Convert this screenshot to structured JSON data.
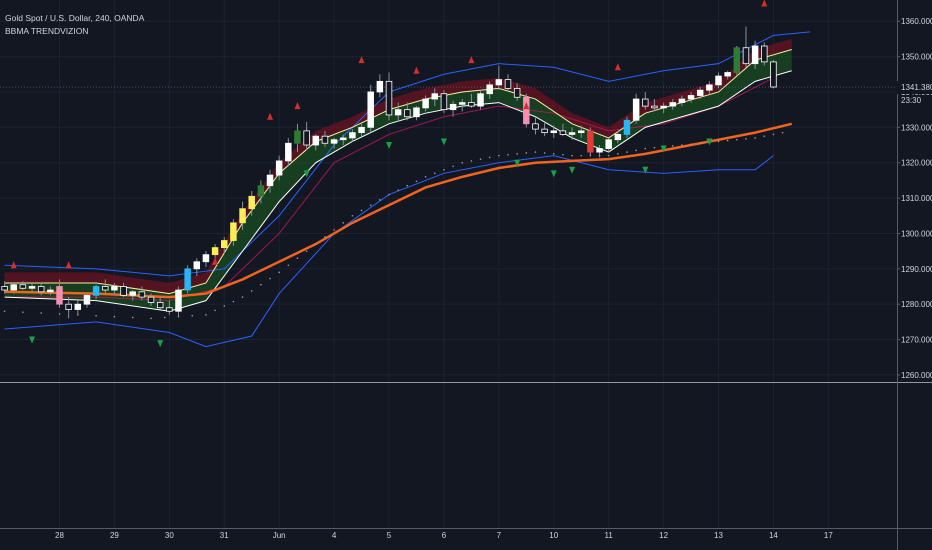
{
  "header": {
    "symbol_title": "Gold Spot / U.S. Dollar, 240, OANDA",
    "indicator_name": "BBMA TRENDVIZION"
  },
  "price_axis": {
    "current_price": "1341.380",
    "countdown": "23:30"
  },
  "colors": {
    "background": "#131722",
    "grid": "#1e2230",
    "axis_text": "#d1d4dc",
    "bb_band": "#2962ff",
    "ema_slow": "#f0641e",
    "ma_fast": "#ffffff",
    "ma_mid": "#f4f1a0",
    "cloud_bull": "#1b5e20",
    "cloud_bear": "#7f1020",
    "arrow_up": "#d32f2f",
    "arrow_down": "#19a14a"
  },
  "chart_data": {
    "type": "candlestick",
    "title": "Gold Spot / U.S. Dollar, 240, OANDA",
    "indicator": "BBMA TRENDVIZION",
    "y_ticks": [
      "1260.000",
      "1270.000",
      "1280.000",
      "1290.000",
      "1300.000",
      "1310.000",
      "1320.000",
      "1330.000",
      "1340.000",
      "1350.000",
      "1360.000"
    ],
    "ylim": [
      1258,
      1366
    ],
    "x_ticks": [
      "28",
      "29",
      "30",
      "31",
      "Jun",
      "4",
      "5",
      "6",
      "7",
      "10",
      "11",
      "12",
      "13",
      "14",
      "17"
    ],
    "x_tick_positions": [
      6.5,
      12.5,
      18.5,
      24.5,
      30.5,
      36.5,
      42.5,
      48.5,
      54.5,
      60.5,
      66.5,
      72.5,
      78.5,
      84.5,
      90.5
    ],
    "xlim": [
      0,
      98
    ],
    "candles": [
      {
        "o": 1285.0,
        "h": 1286.5,
        "l": 1283.0,
        "c": 1284.0,
        "col": "white"
      },
      {
        "o": 1284.0,
        "h": 1286.0,
        "l": 1283.0,
        "c": 1285.5,
        "col": "white"
      },
      {
        "o": 1285.5,
        "h": 1286.5,
        "l": 1284.0,
        "c": 1284.5,
        "col": "white"
      },
      {
        "o": 1284.5,
        "h": 1286.0,
        "l": 1283.5,
        "c": 1285.0,
        "col": "white"
      },
      {
        "o": 1285.0,
        "h": 1286.0,
        "l": 1282.5,
        "c": 1283.5,
        "col": "white"
      },
      {
        "o": 1283.5,
        "h": 1285.0,
        "l": 1282.5,
        "c": 1284.0,
        "col": "white"
      },
      {
        "o": 1285.0,
        "h": 1287.0,
        "l": 1279.0,
        "c": 1280.0,
        "col": "pink"
      },
      {
        "o": 1280.0,
        "h": 1282.0,
        "l": 1276.0,
        "c": 1278.5,
        "col": "white"
      },
      {
        "o": 1278.5,
        "h": 1281.0,
        "l": 1277.0,
        "c": 1280.0,
        "col": "white"
      },
      {
        "o": 1280.0,
        "h": 1283.0,
        "l": 1279.0,
        "c": 1282.5,
        "col": "white"
      },
      {
        "o": 1282.5,
        "h": 1285.5,
        "l": 1281.5,
        "c": 1285.0,
        "col": "cyan"
      },
      {
        "o": 1285.0,
        "h": 1287.0,
        "l": 1283.0,
        "c": 1284.0,
        "col": "white"
      },
      {
        "o": 1284.0,
        "h": 1286.0,
        "l": 1282.5,
        "c": 1285.0,
        "col": "white"
      },
      {
        "o": 1285.0,
        "h": 1286.0,
        "l": 1282.0,
        "c": 1282.5,
        "col": "white"
      },
      {
        "o": 1282.5,
        "h": 1284.0,
        "l": 1281.0,
        "c": 1283.5,
        "col": "white"
      },
      {
        "o": 1283.5,
        "h": 1285.0,
        "l": 1281.0,
        "c": 1282.0,
        "col": "white"
      },
      {
        "o": 1282.0,
        "h": 1283.0,
        "l": 1279.5,
        "c": 1280.5,
        "col": "white"
      },
      {
        "o": 1280.5,
        "h": 1282.0,
        "l": 1278.5,
        "c": 1279.0,
        "col": "white"
      },
      {
        "o": 1279.0,
        "h": 1281.0,
        "l": 1277.0,
        "c": 1278.0,
        "col": "white"
      },
      {
        "o": 1278.0,
        "h": 1285.0,
        "l": 1276.5,
        "c": 1284.0,
        "col": "white"
      },
      {
        "o": 1284.0,
        "h": 1291.0,
        "l": 1283.0,
        "c": 1290.0,
        "col": "cyan"
      },
      {
        "o": 1290.0,
        "h": 1293.0,
        "l": 1288.0,
        "c": 1292.0,
        "col": "white"
      },
      {
        "o": 1292.0,
        "h": 1295.0,
        "l": 1290.5,
        "c": 1294.0,
        "col": "white"
      },
      {
        "o": 1294.0,
        "h": 1297.0,
        "l": 1292.0,
        "c": 1296.0,
        "col": "yellow"
      },
      {
        "o": 1296.0,
        "h": 1299.0,
        "l": 1294.5,
        "c": 1298.0,
        "col": "yellow"
      },
      {
        "o": 1298.0,
        "h": 1304.0,
        "l": 1296.5,
        "c": 1303.0,
        "col": "yellow"
      },
      {
        "o": 1303.0,
        "h": 1309.0,
        "l": 1301.0,
        "c": 1307.0,
        "col": "yellow"
      },
      {
        "o": 1307.0,
        "h": 1312.0,
        "l": 1305.0,
        "c": 1310.5,
        "col": "yellow"
      },
      {
        "o": 1310.5,
        "h": 1315.0,
        "l": 1308.5,
        "c": 1313.5,
        "col": "green"
      },
      {
        "o": 1313.5,
        "h": 1318.0,
        "l": 1311.5,
        "c": 1316.5,
        "col": "white"
      },
      {
        "o": 1316.5,
        "h": 1322.0,
        "l": 1315.0,
        "c": 1320.5,
        "col": "white"
      },
      {
        "o": 1320.5,
        "h": 1327.0,
        "l": 1319.0,
        "c": 1325.5,
        "col": "white"
      },
      {
        "o": 1325.5,
        "h": 1331.0,
        "l": 1323.0,
        "c": 1329.0,
        "col": "green"
      },
      {
        "o": 1329.0,
        "h": 1331.5,
        "l": 1323.5,
        "c": 1325.0,
        "col": "white"
      },
      {
        "o": 1325.0,
        "h": 1328.0,
        "l": 1323.5,
        "c": 1327.5,
        "col": "white"
      },
      {
        "o": 1327.5,
        "h": 1329.0,
        "l": 1324.5,
        "c": 1325.5,
        "col": "white"
      },
      {
        "o": 1325.5,
        "h": 1327.0,
        "l": 1324.0,
        "c": 1326.5,
        "col": "white"
      },
      {
        "o": 1326.5,
        "h": 1328.0,
        "l": 1325.0,
        "c": 1327.0,
        "col": "white"
      },
      {
        "o": 1327.0,
        "h": 1329.5,
        "l": 1326.0,
        "c": 1328.5,
        "col": "white"
      },
      {
        "o": 1328.5,
        "h": 1331.0,
        "l": 1327.5,
        "c": 1330.0,
        "col": "white"
      },
      {
        "o": 1330.0,
        "h": 1342.0,
        "l": 1328.5,
        "c": 1340.0,
        "col": "white"
      },
      {
        "o": 1340.0,
        "h": 1345.0,
        "l": 1338.5,
        "c": 1343.0,
        "col": "white"
      },
      {
        "o": 1343.0,
        "h": 1345.5,
        "l": 1332.0,
        "c": 1333.5,
        "col": "white"
      },
      {
        "o": 1333.5,
        "h": 1337.0,
        "l": 1331.5,
        "c": 1335.0,
        "col": "white"
      },
      {
        "o": 1335.0,
        "h": 1337.0,
        "l": 1332.0,
        "c": 1333.0,
        "col": "white"
      },
      {
        "o": 1333.0,
        "h": 1336.0,
        "l": 1332.0,
        "c": 1335.5,
        "col": "white"
      },
      {
        "o": 1335.5,
        "h": 1339.0,
        "l": 1334.5,
        "c": 1338.0,
        "col": "white"
      },
      {
        "o": 1338.0,
        "h": 1341.0,
        "l": 1336.0,
        "c": 1339.5,
        "col": "white"
      },
      {
        "o": 1339.5,
        "h": 1340.5,
        "l": 1334.0,
        "c": 1335.0,
        "col": "white"
      },
      {
        "o": 1335.0,
        "h": 1337.5,
        "l": 1333.0,
        "c": 1336.5,
        "col": "white"
      },
      {
        "o": 1336.5,
        "h": 1338.0,
        "l": 1334.5,
        "c": 1337.0,
        "col": "white"
      },
      {
        "o": 1337.0,
        "h": 1339.5,
        "l": 1335.5,
        "c": 1336.0,
        "col": "white"
      },
      {
        "o": 1336.0,
        "h": 1340.5,
        "l": 1335.0,
        "c": 1339.5,
        "col": "white"
      },
      {
        "o": 1339.5,
        "h": 1343.0,
        "l": 1338.0,
        "c": 1342.0,
        "col": "white"
      },
      {
        "o": 1342.0,
        "h": 1347.5,
        "l": 1340.5,
        "c": 1343.5,
        "col": "white"
      },
      {
        "o": 1343.5,
        "h": 1345.0,
        "l": 1340.0,
        "c": 1341.0,
        "col": "white"
      },
      {
        "o": 1341.0,
        "h": 1342.5,
        "l": 1337.5,
        "c": 1338.5,
        "col": "white"
      },
      {
        "o": 1338.5,
        "h": 1339.5,
        "l": 1330.0,
        "c": 1331.0,
        "col": "pink"
      },
      {
        "o": 1331.0,
        "h": 1333.0,
        "l": 1328.0,
        "c": 1329.5,
        "col": "white"
      },
      {
        "o": 1329.5,
        "h": 1331.5,
        "l": 1327.5,
        "c": 1328.5,
        "col": "white"
      },
      {
        "o": 1328.5,
        "h": 1330.5,
        "l": 1327.0,
        "c": 1329.0,
        "col": "white"
      },
      {
        "o": 1329.0,
        "h": 1331.0,
        "l": 1327.5,
        "c": 1328.0,
        "col": "white"
      },
      {
        "o": 1328.0,
        "h": 1330.0,
        "l": 1326.5,
        "c": 1328.5,
        "col": "white"
      },
      {
        "o": 1328.5,
        "h": 1330.5,
        "l": 1327.0,
        "c": 1329.0,
        "col": "white"
      },
      {
        "o": 1329.0,
        "h": 1330.0,
        "l": 1322.0,
        "c": 1323.0,
        "col": "red"
      },
      {
        "o": 1323.0,
        "h": 1325.0,
        "l": 1321.5,
        "c": 1324.0,
        "col": "white"
      },
      {
        "o": 1324.0,
        "h": 1327.0,
        "l": 1323.0,
        "c": 1326.5,
        "col": "white"
      },
      {
        "o": 1326.5,
        "h": 1329.0,
        "l": 1325.5,
        "c": 1328.0,
        "col": "white"
      },
      {
        "o": 1328.0,
        "h": 1333.0,
        "l": 1327.0,
        "c": 1332.0,
        "col": "cyan"
      },
      {
        "o": 1332.0,
        "h": 1339.5,
        "l": 1331.0,
        "c": 1338.0,
        "col": "white"
      },
      {
        "o": 1338.0,
        "h": 1340.0,
        "l": 1335.0,
        "c": 1336.0,
        "col": "white"
      },
      {
        "o": 1336.0,
        "h": 1338.0,
        "l": 1334.5,
        "c": 1335.5,
        "col": "white"
      },
      {
        "o": 1335.5,
        "h": 1337.0,
        "l": 1334.0,
        "c": 1336.0,
        "col": "white"
      },
      {
        "o": 1336.0,
        "h": 1338.0,
        "l": 1335.0,
        "c": 1337.0,
        "col": "white"
      },
      {
        "o": 1337.0,
        "h": 1339.0,
        "l": 1336.0,
        "c": 1338.0,
        "col": "white"
      },
      {
        "o": 1338.0,
        "h": 1340.0,
        "l": 1337.0,
        "c": 1339.0,
        "col": "white"
      },
      {
        "o": 1339.0,
        "h": 1341.5,
        "l": 1338.0,
        "c": 1340.5,
        "col": "white"
      },
      {
        "o": 1340.5,
        "h": 1343.0,
        "l": 1339.5,
        "c": 1342.0,
        "col": "white"
      },
      {
        "o": 1342.0,
        "h": 1345.5,
        "l": 1341.0,
        "c": 1344.5,
        "col": "white"
      },
      {
        "o": 1344.5,
        "h": 1346.0,
        "l": 1343.5,
        "c": 1345.5,
        "col": "white"
      },
      {
        "o": 1345.5,
        "h": 1353.0,
        "l": 1344.5,
        "c": 1352.5,
        "col": "green"
      },
      {
        "o": 1352.5,
        "h": 1358.5,
        "l": 1347.0,
        "c": 1348.0,
        "col": "white"
      },
      {
        "o": 1348.0,
        "h": 1354.5,
        "l": 1346.5,
        "c": 1353.0,
        "col": "white"
      },
      {
        "o": 1353.0,
        "h": 1354.0,
        "l": 1347.5,
        "c": 1348.5,
        "col": "white"
      },
      {
        "o": 1348.5,
        "h": 1349.0,
        "l": 1341.0,
        "c": 1341.4,
        "col": "white"
      }
    ],
    "bb_upper": [
      [
        0,
        1291
      ],
      [
        10,
        1290
      ],
      [
        18,
        1288
      ],
      [
        24,
        1290
      ],
      [
        30,
        1305
      ],
      [
        36,
        1325
      ],
      [
        42,
        1340
      ],
      [
        48,
        1345
      ],
      [
        54,
        1348
      ],
      [
        60,
        1347
      ],
      [
        66,
        1343
      ],
      [
        72,
        1346
      ],
      [
        78,
        1348
      ],
      [
        84,
        1356
      ],
      [
        88,
        1357
      ]
    ],
    "bb_lower": [
      [
        0,
        1273
      ],
      [
        10,
        1275
      ],
      [
        18,
        1272
      ],
      [
        22,
        1268
      ],
      [
        27,
        1271
      ],
      [
        30,
        1283
      ],
      [
        36,
        1300
      ],
      [
        42,
        1311
      ],
      [
        48,
        1317
      ],
      [
        54,
        1320
      ],
      [
        60,
        1322
      ],
      [
        66,
        1318
      ],
      [
        72,
        1317
      ],
      [
        78,
        1318
      ],
      [
        82,
        1318
      ],
      [
        84,
        1322
      ]
    ],
    "bb_mid": [
      [
        0,
        1282
      ],
      [
        10,
        1282
      ],
      [
        18,
        1281
      ],
      [
        24,
        1285
      ],
      [
        30,
        1300
      ],
      [
        36,
        1320
      ],
      [
        42,
        1328
      ],
      [
        48,
        1333
      ],
      [
        54,
        1336
      ],
      [
        60,
        1334
      ],
      [
        66,
        1329
      ],
      [
        72,
        1331
      ],
      [
        78,
        1336
      ],
      [
        84,
        1344
      ]
    ],
    "ma_high_fast": [
      [
        0,
        1286
      ],
      [
        10,
        1286
      ],
      [
        18,
        1283
      ],
      [
        22,
        1286
      ],
      [
        26,
        1303
      ],
      [
        30,
        1317
      ],
      [
        34,
        1326
      ],
      [
        38,
        1330
      ],
      [
        42,
        1335
      ],
      [
        46,
        1338
      ],
      [
        50,
        1340
      ],
      [
        54,
        1341
      ],
      [
        58,
        1338
      ],
      [
        62,
        1331
      ],
      [
        66,
        1327
      ],
      [
        70,
        1334
      ],
      [
        74,
        1337
      ],
      [
        78,
        1340
      ],
      [
        82,
        1349
      ],
      [
        86,
        1352
      ]
    ],
    "ma_low_fast": [
      [
        0,
        1282
      ],
      [
        10,
        1281
      ],
      [
        18,
        1278
      ],
      [
        22,
        1281
      ],
      [
        26,
        1295
      ],
      [
        30,
        1309
      ],
      [
        34,
        1320
      ],
      [
        38,
        1326
      ],
      [
        42,
        1331
      ],
      [
        46,
        1334
      ],
      [
        50,
        1336
      ],
      [
        54,
        1337
      ],
      [
        58,
        1333
      ],
      [
        62,
        1327
      ],
      [
        66,
        1323
      ],
      [
        70,
        1330
      ],
      [
        74,
        1333
      ],
      [
        78,
        1336
      ],
      [
        82,
        1343
      ],
      [
        86,
        1346
      ]
    ],
    "ema_slow": [
      [
        0,
        1283.5
      ],
      [
        10,
        1283
      ],
      [
        18,
        1282
      ],
      [
        22,
        1283
      ],
      [
        26,
        1287
      ],
      [
        30,
        1292
      ],
      [
        34,
        1297
      ],
      [
        38,
        1303
      ],
      [
        42,
        1308
      ],
      [
        46,
        1313
      ],
      [
        50,
        1316
      ],
      [
        54,
        1318.5
      ],
      [
        58,
        1320
      ],
      [
        62,
        1320.5
      ],
      [
        66,
        1321
      ],
      [
        70,
        1322.5
      ],
      [
        74,
        1324.5
      ],
      [
        78,
        1326.5
      ],
      [
        82,
        1328.5
      ],
      [
        86,
        1331
      ]
    ],
    "dots": [
      [
        0,
        1278
      ],
      [
        8,
        1277
      ],
      [
        16,
        1276
      ],
      [
        22,
        1277
      ],
      [
        26,
        1282
      ],
      [
        30,
        1289
      ],
      [
        34,
        1297
      ],
      [
        38,
        1305
      ],
      [
        42,
        1311
      ],
      [
        46,
        1316
      ],
      [
        50,
        1320
      ],
      [
        54,
        1322
      ],
      [
        58,
        1323
      ],
      [
        62,
        1322
      ],
      [
        66,
        1322
      ],
      [
        70,
        1324
      ],
      [
        74,
        1325
      ],
      [
        78,
        1326
      ],
      [
        82,
        1327
      ],
      [
        86,
        1329
      ]
    ],
    "arrows_up": [
      [
        1,
        1291
      ],
      [
        7,
        1291
      ],
      [
        23,
        1292
      ],
      [
        29,
        1333
      ],
      [
        32,
        1336
      ],
      [
        39,
        1349
      ],
      [
        45,
        1346
      ],
      [
        51,
        1349
      ],
      [
        57,
        1336
      ],
      [
        67,
        1347
      ],
      [
        83,
        1365
      ]
    ],
    "arrows_down": [
      [
        3,
        1270
      ],
      [
        17,
        1269
      ],
      [
        33,
        1317
      ],
      [
        42,
        1325
      ],
      [
        48,
        1326
      ],
      [
        56,
        1320
      ],
      [
        60,
        1317
      ],
      [
        62,
        1318
      ],
      [
        70,
        1318
      ],
      [
        72,
        1324
      ],
      [
        77,
        1326
      ]
    ]
  }
}
